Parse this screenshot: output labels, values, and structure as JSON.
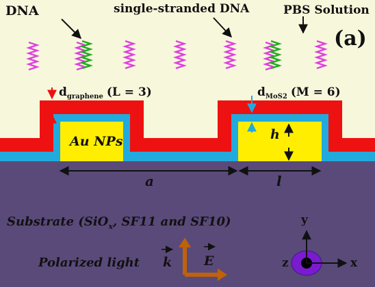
{
  "labels": {
    "dna": "DNA",
    "ssdna": "single-stranded DNA",
    "pbs": "PBS Solution",
    "panel": "(a)",
    "d_graphene_main": "d",
    "d_graphene_sub": "graphene",
    "graphene_layers": "(L = 3)",
    "d_mos2_main": "d",
    "d_mos2_sub": "MoS2",
    "mos2_layers": "(M = 6)",
    "au_nps": "Au NPs",
    "h": "h",
    "a": "a",
    "l": "l",
    "substrate_prefix": "Substrate (SiO",
    "substrate_x": "x",
    "substrate_suffix": ", SF11 and SF10)",
    "polarized": "Polarized light",
    "k": "k",
    "E": "E",
    "axis_y": "y",
    "axis_x": "x",
    "axis_z": "z"
  },
  "colors": {
    "solution": "#f7f7dc",
    "substrate": "#5a4a7a",
    "graphene": "#ee1111",
    "mos2": "#22aadd",
    "gold": "#ffee00",
    "dna_magenta": "#e040e0",
    "dna_green": "#22aa22",
    "light_arrow": "#c0620a",
    "z_ellipse": "#7a1bd0"
  }
}
